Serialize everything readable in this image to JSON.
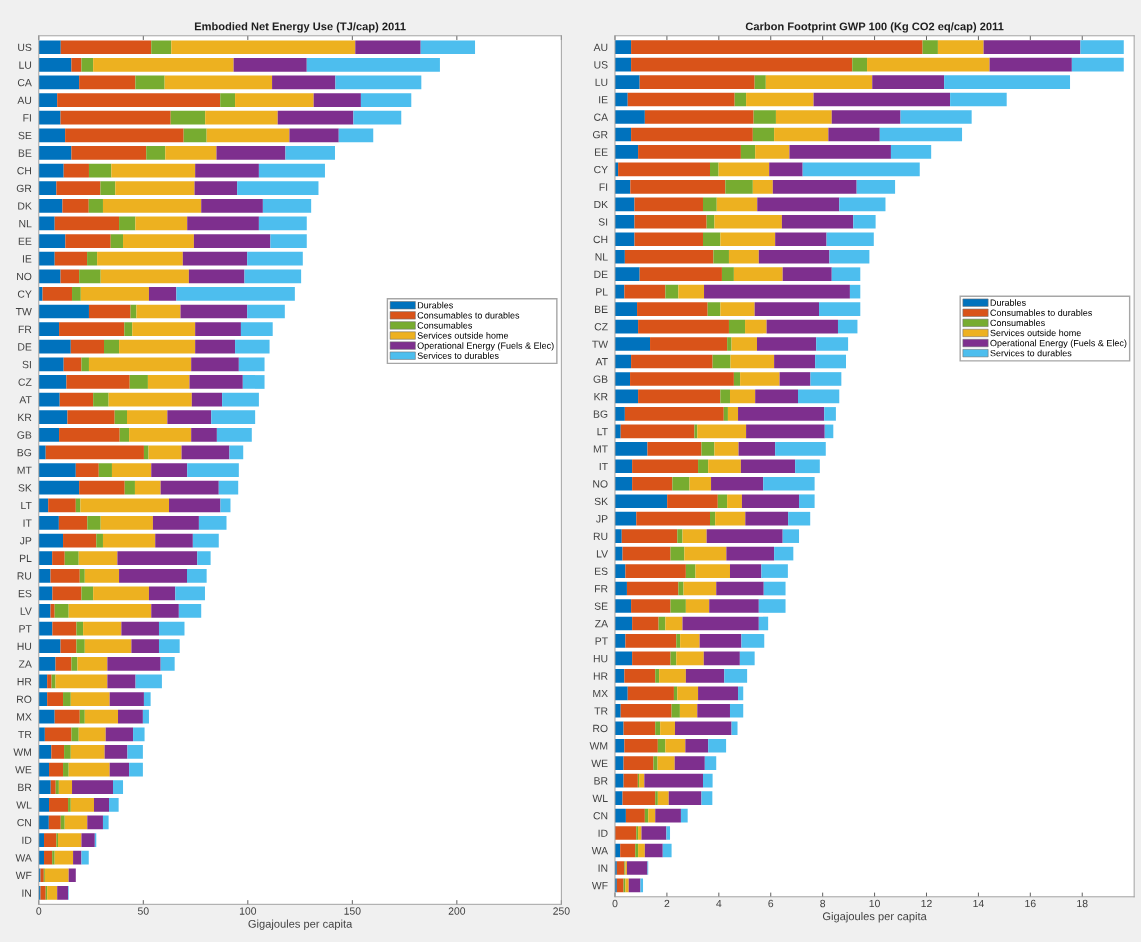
{
  "chart_data": [
    {
      "type": "bar",
      "orientation": "horizontal",
      "stacked": true,
      "title": "Embodied Net Energy Use (TJ/cap) 2011",
      "xlabel": "Gigajoules per capita",
      "xlim": [
        0,
        250
      ],
      "xticks": [
        0,
        50,
        100,
        150,
        200,
        250
      ],
      "legend": "right",
      "grid": false,
      "categories": [
        "US",
        "LU",
        "CA",
        "AU",
        "FI",
        "SE",
        "BE",
        "CH",
        "GR",
        "DK",
        "NL",
        "EE",
        "IE",
        "NO",
        "CY",
        "TW",
        "FR",
        "DE",
        "SI",
        "CZ",
        "AT",
        "KR",
        "GB",
        "BG",
        "MT",
        "SK",
        "LT",
        "IT",
        "JP",
        "PL",
        "RU",
        "ES",
        "LV",
        "PT",
        "HU",
        "ZA",
        "HR",
        "RO",
        "MX",
        "TR",
        "WM",
        "WE",
        "BR",
        "WL",
        "CN",
        "ID",
        "WA",
        "WF",
        "IN"
      ],
      "series": [
        {
          "name": "Durables",
          "color": "#0072bd",
          "values": [
            10.5,
            15.6,
            19.3,
            8.8,
            10.4,
            12.6,
            15.6,
            11.9,
            8.4,
            11.3,
            7.6,
            12.7,
            7.6,
            10.4,
            1.8,
            24,
            9.7,
            15.3,
            11.9,
            13.2,
            10,
            13.7,
            9.7,
            3.3,
            17.7,
            19.3,
            4.5,
            9.6,
            11.6,
            6.4,
            5.6,
            6.5,
            5.6,
            6.5,
            10.4,
            8,
            4,
            4,
            7.6,
            2.9,
            6,
            4.9,
            5.7,
            4.9,
            4.8,
            2.5,
            2.5,
            0.8,
            0.8
          ]
        },
        {
          "name": "Consumables to durables",
          "color": "#d95319",
          "values": [
            43.3,
            4.8,
            26.9,
            78,
            52.7,
            56.7,
            35.8,
            12.1,
            21.1,
            12.6,
            30.8,
            21.7,
            15.5,
            8.9,
            14.1,
            19.9,
            31.2,
            15.9,
            8.5,
            30.3,
            16,
            22.6,
            29,
            47,
            11,
            21.8,
            13.2,
            13.6,
            15.9,
            6,
            14,
            13.9,
            2,
            11.5,
            7.6,
            7.6,
            2.1,
            7.6,
            12,
            12.7,
            6.1,
            6.7,
            2.4,
            9.1,
            5.7,
            5.9,
            3.9,
            1.6,
            2.5
          ]
        },
        {
          "name": "Consumables",
          "color": "#77ac30",
          "values": [
            9.6,
            5.6,
            14,
            7.1,
            16.5,
            11,
            9.1,
            10.7,
            7.1,
            6.8,
            7.8,
            5.9,
            4.8,
            10.3,
            4.2,
            2.8,
            3.8,
            7.2,
            3.6,
            8.7,
            7.4,
            5.9,
            4.5,
            2.2,
            6.3,
            4.9,
            2.2,
            6.4,
            3.2,
            6.7,
            2.4,
            5.6,
            6.7,
            3.2,
            4,
            2.9,
            1.9,
            3.7,
            2.4,
            3.5,
            3.2,
            2.7,
            1.5,
            1.3,
            1.9,
            0.8,
            1.2,
            0.5,
            0.7
          ]
        },
        {
          "name": "Services outside home",
          "color": "#edb120",
          "values": [
            88,
            67.2,
            51.4,
            37.6,
            34.7,
            39.6,
            24.5,
            40.1,
            37.9,
            47,
            24.8,
            33.9,
            41,
            42.2,
            32.6,
            21.1,
            30.1,
            36.4,
            48.9,
            19.9,
            39.8,
            19.3,
            29.7,
            15.8,
            18.8,
            12.3,
            42.4,
            25,
            25,
            18.5,
            16.4,
            26.7,
            39.5,
            18.3,
            22.3,
            14.3,
            24.8,
            18.6,
            15.9,
            12.9,
            16.2,
            19.6,
            6.3,
            11.1,
            10.8,
            11.2,
            8.8,
            11.4,
            4.8
          ]
        },
        {
          "name": "Operational Energy (Fuels & Elec)",
          "color": "#7e2f8e",
          "values": [
            31.3,
            35,
            30.3,
            22.6,
            36.2,
            23.6,
            33,
            30.5,
            20.4,
            29.5,
            34.3,
            36.6,
            30.8,
            26.6,
            13.1,
            31.9,
            21.9,
            19.1,
            22.8,
            25.5,
            14.5,
            21,
            12.3,
            22.9,
            17.2,
            27.8,
            24.6,
            22,
            18,
            38.2,
            32.5,
            12.6,
            13.2,
            18,
            13.2,
            25.5,
            13.5,
            16.4,
            11.9,
            13.1,
            10.9,
            9.3,
            19.6,
            7.2,
            7.5,
            6.4,
            4,
            3.4,
            5.2
          ]
        },
        {
          "name": "Services to durables",
          "color": "#4dbeee",
          "values": [
            26,
            63.7,
            41.1,
            24.1,
            22.9,
            16.5,
            23.7,
            31.6,
            38.9,
            23.1,
            22.9,
            17.4,
            26.6,
            27.1,
            56.7,
            18,
            15.2,
            16.5,
            12.3,
            10.4,
            17.6,
            21,
            16.7,
            6.6,
            24.7,
            9.3,
            4.8,
            13.2,
            12.4,
            6.4,
            9.4,
            14.2,
            10.7,
            12.2,
            9.9,
            6.7,
            12.6,
            3.2,
            2.9,
            5.5,
            7.4,
            6.6,
            4.8,
            4.6,
            2.7,
            0.7,
            3.5,
            null,
            0.3
          ]
        }
      ]
    },
    {
      "type": "bar",
      "orientation": "horizontal",
      "stacked": true,
      "title": "Carbon Footprint GWP 100 (Kg CO2 eq/cap) 2011",
      "xlabel": "Gigajoules per capita",
      "xlim": [
        0,
        20
      ],
      "xticks": [
        0,
        2,
        4,
        6,
        8,
        10,
        12,
        14,
        16,
        18
      ],
      "legend": "right",
      "grid": false,
      "categories": [
        "AU",
        "US",
        "LU",
        "IE",
        "CA",
        "GR",
        "EE",
        "CY",
        "FI",
        "DK",
        "SI",
        "CH",
        "NL",
        "DE",
        "PL",
        "BE",
        "CZ",
        "TW",
        "AT",
        "GB",
        "KR",
        "BG",
        "LT",
        "MT",
        "IT",
        "NO",
        "SK",
        "JP",
        "RU",
        "LV",
        "ES",
        "FR",
        "SE",
        "ZA",
        "PT",
        "HU",
        "HR",
        "MX",
        "TR",
        "RO",
        "WM",
        "WE",
        "BR",
        "WL",
        "CN",
        "ID",
        "WA",
        "IN",
        "WF"
      ],
      "series": [
        {
          "name": "Durables",
          "color": "#0072bd",
          "values": [
            0.62,
            0.62,
            0.95,
            0.49,
            1.15,
            0.62,
            0.89,
            0.12,
            0.59,
            0.75,
            0.75,
            0.75,
            0.38,
            0.95,
            0.36,
            0.85,
            0.89,
            1.35,
            0.62,
            0.58,
            0.89,
            0.38,
            0.22,
            1.25,
            0.66,
            0.66,
            2.01,
            0.82,
            0.26,
            0.29,
            0.4,
            0.46,
            0.62,
            0.66,
            0.4,
            0.66,
            0.36,
            0.49,
            0.22,
            0.33,
            0.36,
            0.33,
            0.33,
            0.29,
            0.42,
            null,
            0.2,
            0.07,
            0.07
          ]
        },
        {
          "name": "Consumables to durables",
          "color": "#d95319",
          "values": [
            11.23,
            8.52,
            4.43,
            4.12,
            4.19,
            4.69,
            3.96,
            3.54,
            3.66,
            2.64,
            2.78,
            2.64,
            3.41,
            3.17,
            1.58,
            2.72,
            3.5,
            2.97,
            3.14,
            4.0,
            3.17,
            3.81,
            2.84,
            2.08,
            2.54,
            1.55,
            1.95,
            2.84,
            2.14,
            1.85,
            2.33,
            1.98,
            1.52,
            1.02,
            1.96,
            1.48,
            1.19,
            1.78,
            1.96,
            1.22,
            1.29,
            1.15,
            0.55,
            1.26,
            0.73,
            0.82,
            0.58,
            0.29,
            0.26
          ]
        },
        {
          "name": "Consumables",
          "color": "#77ac30",
          "values": [
            0.59,
            0.57,
            0.43,
            0.44,
            0.86,
            0.82,
            0.55,
            0.33,
            1.06,
            0.53,
            0.3,
            0.67,
            0.6,
            0.46,
            0.5,
            0.49,
            0.62,
            0.17,
            0.69,
            0.24,
            0.37,
            0.16,
            0.11,
            0.5,
            0.39,
            0.66,
            0.36,
            0.2,
            0.2,
            0.53,
            0.37,
            0.2,
            0.59,
            0.26,
            0.15,
            0.22,
            0.15,
            0.13,
            0.32,
            0.19,
            0.29,
            0.16,
            0.05,
            0.1,
            0.13,
            0.07,
            0.11,
            0.04,
            0.07
          ]
        },
        {
          "name": "Services outside home",
          "color": "#edb120",
          "values": [
            1.76,
            4.72,
            4.1,
            2.6,
            2.15,
            2.09,
            1.32,
            1.95,
            0.77,
            1.56,
            2.6,
            2.11,
            1.15,
            1.88,
            0.99,
            1.32,
            0.83,
            0.98,
            1.68,
            1.52,
            0.97,
            0.39,
            1.88,
            0.93,
            1.26,
            0.83,
            0.57,
            1.16,
            0.93,
            1.62,
            1.33,
            1.26,
            0.9,
            0.66,
            0.75,
            1.06,
            1.03,
            0.8,
            0.67,
            0.57,
            0.77,
            0.66,
            0.2,
            0.42,
            0.27,
            0.13,
            0.26,
            0.06,
            0.13
          ]
        },
        {
          "name": "Operational Energy (Fuels & Elec)",
          "color": "#7e2f8e",
          "values": [
            3.73,
            3.17,
            2.77,
            5.26,
            2.65,
            1.98,
            3.91,
            1.29,
            3.23,
            3.16,
            2.75,
            1.98,
            2.72,
            1.89,
            5.62,
            2.48,
            2.75,
            2.28,
            1.58,
            1.19,
            1.65,
            3.32,
            3.03,
            1.41,
            2.09,
            2.01,
            2.2,
            1.65,
            2.93,
            1.84,
            1.21,
            1.83,
            1.91,
            2.94,
            1.61,
            1.39,
            1.48,
            1.54,
            1.26,
            2.18,
            0.88,
            1.16,
            2.26,
            1.26,
            0.99,
            0.96,
            0.69,
            0.79,
            0.45
          ]
        },
        {
          "name": "Services to durables",
          "color": "#4dbeee",
          "values": [
            1.67,
            2.0,
            4.85,
            2.18,
            2.74,
            3.17,
            1.55,
            4.51,
            1.48,
            1.78,
            0.86,
            1.82,
            1.54,
            1.1,
            0.4,
            1.59,
            0.75,
            1.23,
            1.19,
            1.19,
            1.59,
            0.45,
            0.33,
            1.95,
            0.95,
            1.98,
            0.6,
            0.85,
            0.63,
            0.74,
            1.02,
            0.84,
            1.03,
            0.36,
            0.88,
            0.57,
            0.88,
            0.2,
            0.51,
            0.23,
            0.69,
            0.44,
            0.37,
            0.42,
            0.26,
            0.14,
            0.34,
            0.03,
            0.1
          ]
        }
      ]
    }
  ]
}
